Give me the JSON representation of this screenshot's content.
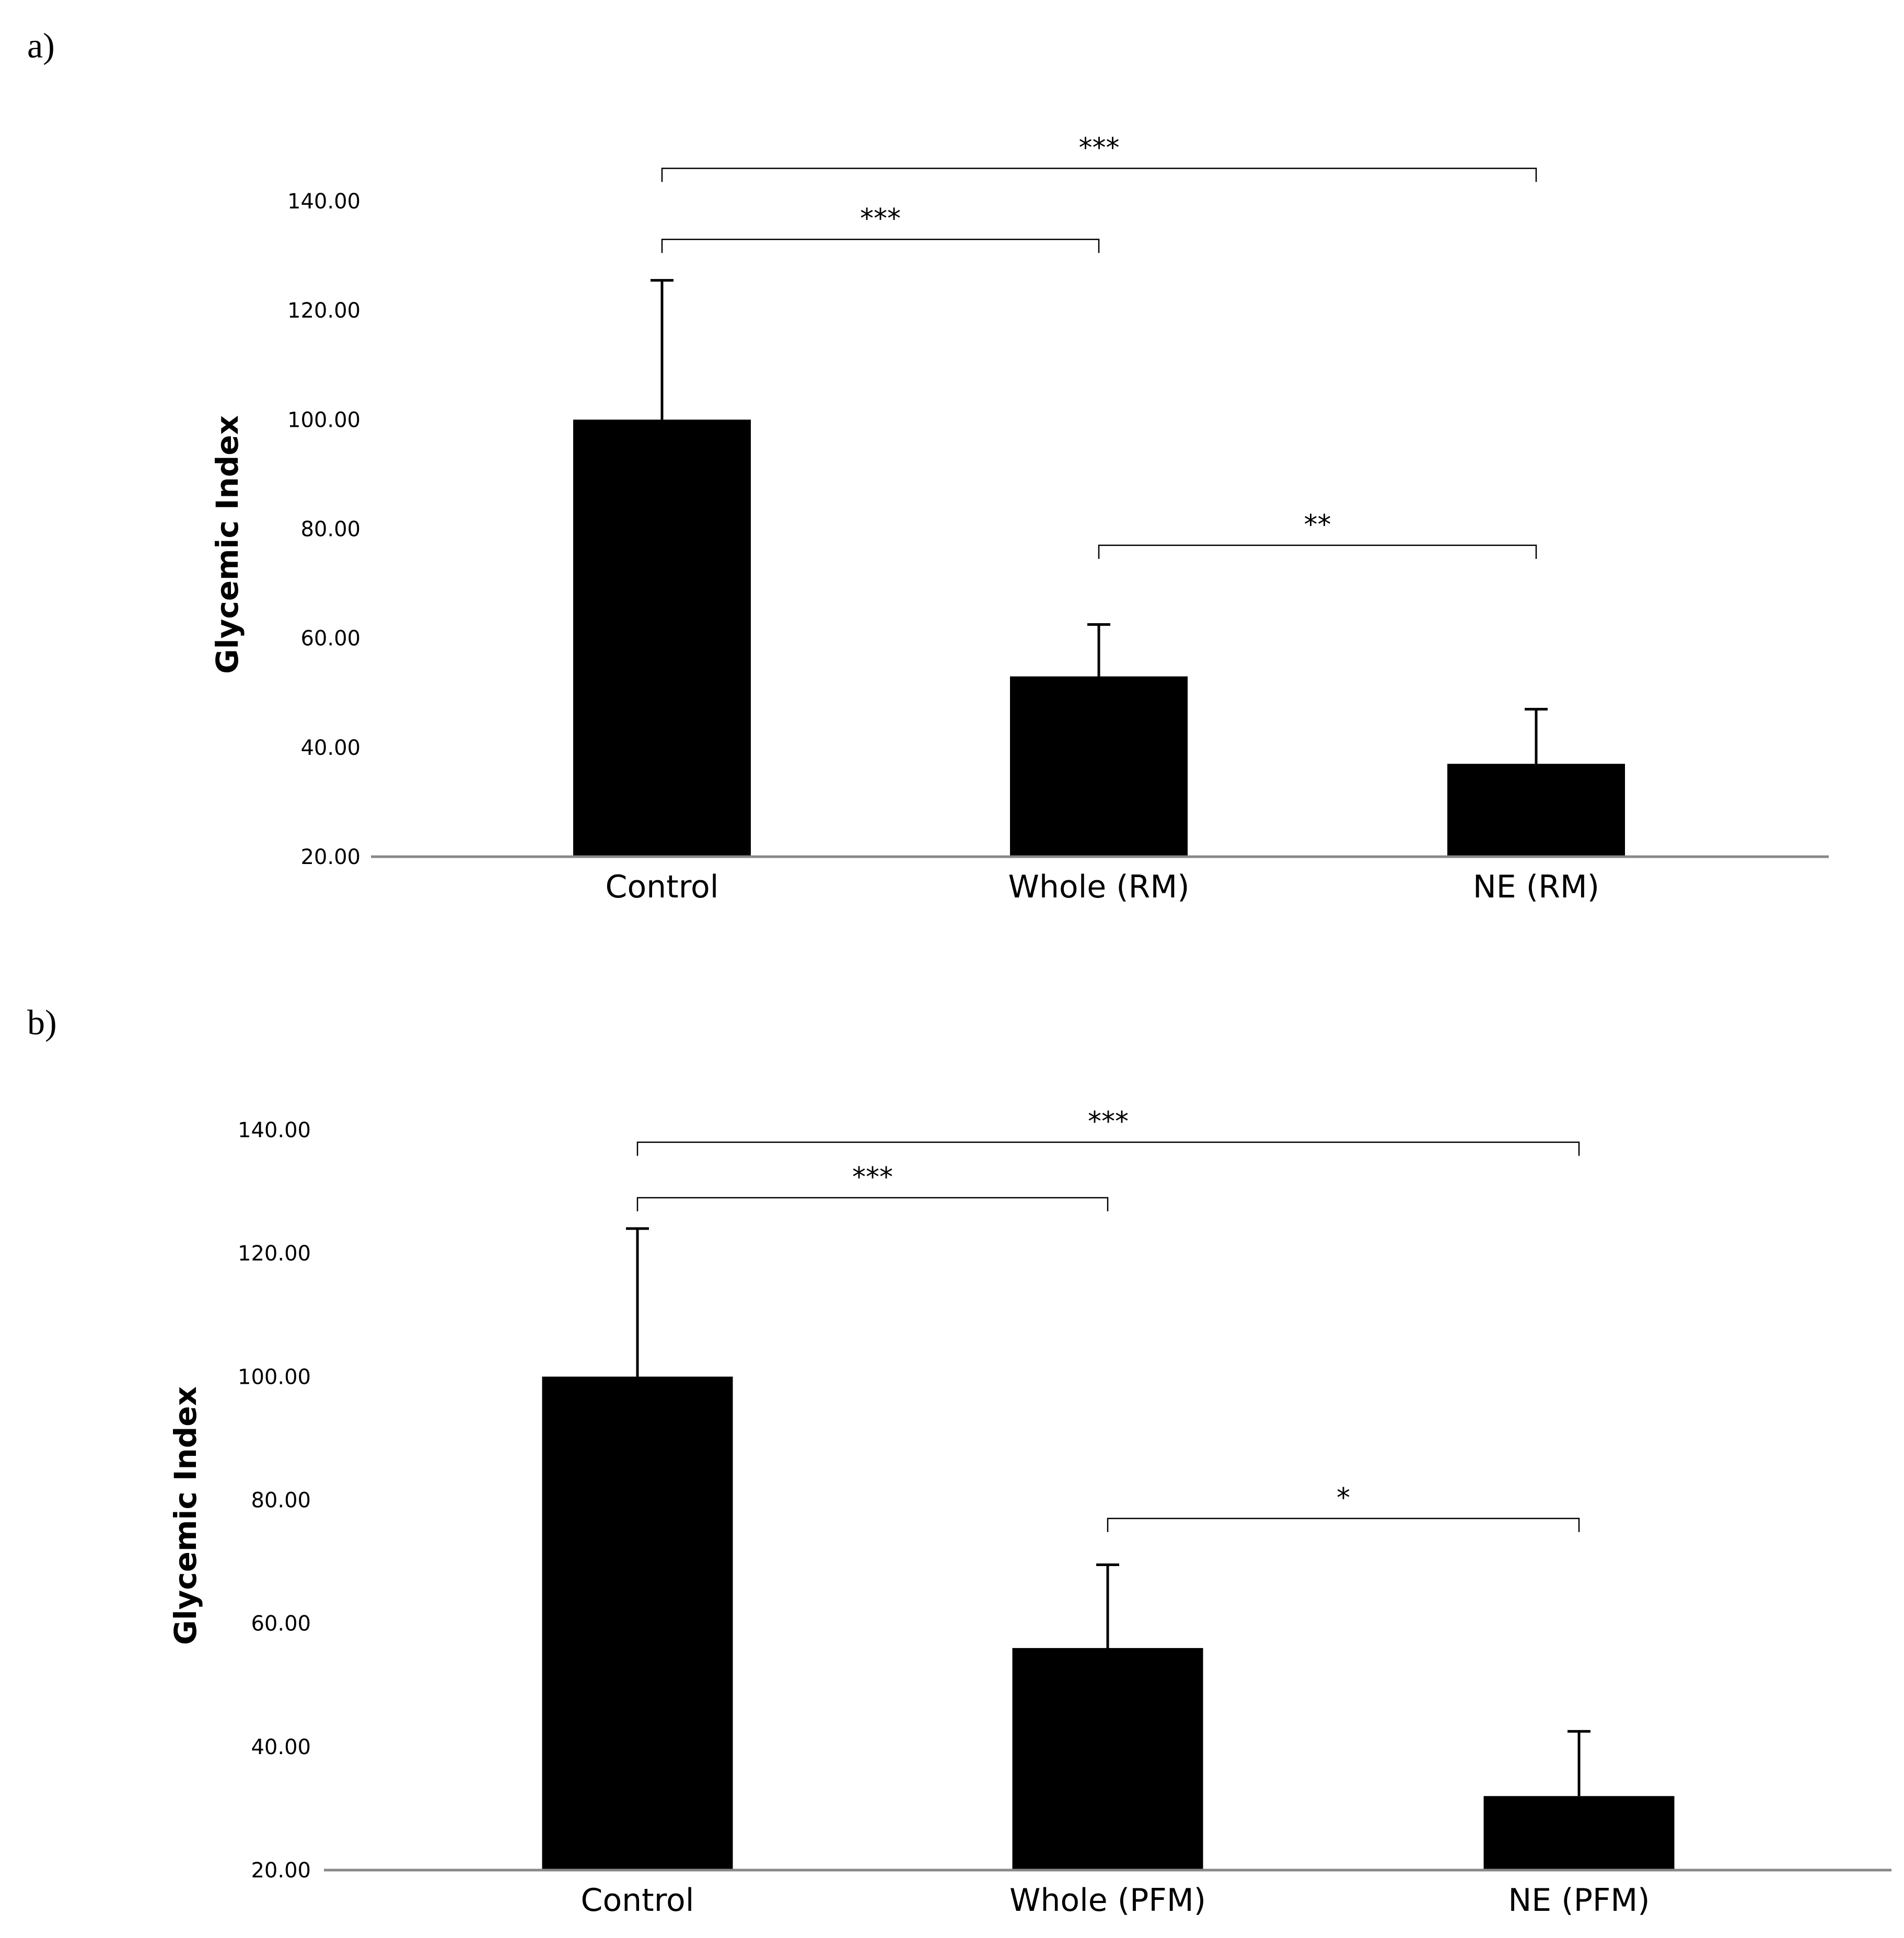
{
  "chart_data": [
    {
      "panel": "a)",
      "type": "bar",
      "ylabel": "Glycemic Index",
      "xlabel": "",
      "ylim": [
        20,
        140
      ],
      "yticks": [
        "20.00",
        "40.00",
        "60.00",
        "80.00",
        "100.00",
        "120.00",
        "140.00"
      ],
      "categories": [
        "Control",
        "Whole (RM)",
        "NE (RM)"
      ],
      "values": [
        100,
        53,
        37
      ],
      "error_upper": [
        125.5,
        62.5,
        47
      ],
      "significance": [
        {
          "from": 0,
          "to": 1,
          "label": "***",
          "y": 133
        },
        {
          "from": 0,
          "to": 2,
          "label": "***",
          "y": 146
        },
        {
          "from": 1,
          "to": 2,
          "label": "**",
          "y": 77
        }
      ]
    },
    {
      "panel": "b)",
      "type": "bar",
      "ylabel": "Glycemic Index",
      "xlabel": "",
      "ylim": [
        20,
        140
      ],
      "yticks": [
        "20.00",
        "40.00",
        "60.00",
        "80.00",
        "100.00",
        "120.00",
        "140.00"
      ],
      "categories": [
        "Control",
        "Whole (PFM)",
        "NE (PFM)"
      ],
      "values": [
        100,
        56,
        32
      ],
      "error_upper": [
        124,
        69.5,
        42.5
      ],
      "significance": [
        {
          "from": 0,
          "to": 1,
          "label": "***",
          "y": 129
        },
        {
          "from": 0,
          "to": 2,
          "label": "***",
          "y": 138
        },
        {
          "from": 1,
          "to": 2,
          "label": "*",
          "y": 77
        }
      ]
    }
  ]
}
